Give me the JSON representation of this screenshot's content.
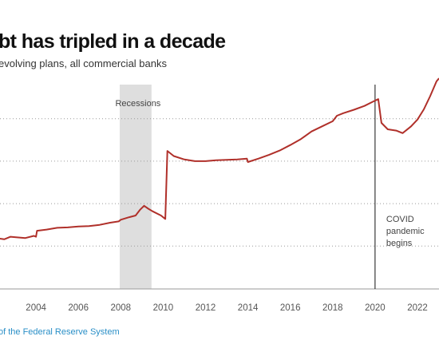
{
  "header": {
    "title": "bt has tripled in a decade",
    "subtitle": "evolving plans, all commercial banks"
  },
  "footer": {
    "source": "of the Federal Reserve System"
  },
  "chart_data": {
    "type": "line",
    "title": "bt has tripled in a decade",
    "subtitle": "evolving plans, all commercial banks",
    "xlabel": "",
    "ylabel": "",
    "xlim": [
      2002,
      2023
    ],
    "ylim": [
      0,
      5
    ],
    "grid": "horizontal-dotted",
    "line_color": "#b0302a",
    "x_ticks": [
      "2",
      "2004",
      "2006",
      "2008",
      "2010",
      "2012",
      "2014",
      "2016",
      "2018",
      "2020",
      "2022"
    ],
    "recession": {
      "label": "Recessions",
      "start": 2007.95,
      "end": 2009.45,
      "color": "#dedede"
    },
    "event": {
      "x": 2020.0,
      "label_lines": [
        "COVID",
        "pandemic",
        "begins"
      ]
    },
    "series": [
      {
        "values": [
          [
            2002.0,
            1.2
          ],
          [
            2002.5,
            1.16
          ],
          [
            2002.8,
            1.22
          ],
          [
            2003.0,
            1.21
          ],
          [
            2003.5,
            1.19
          ],
          [
            2003.9,
            1.24
          ],
          [
            2004.0,
            1.22
          ],
          [
            2004.05,
            1.36
          ],
          [
            2004.5,
            1.39
          ],
          [
            2005.0,
            1.43
          ],
          [
            2005.5,
            1.44
          ],
          [
            2006.0,
            1.46
          ],
          [
            2006.5,
            1.47
          ],
          [
            2007.0,
            1.5
          ],
          [
            2007.5,
            1.55
          ],
          [
            2007.9,
            1.58
          ],
          [
            2008.0,
            1.62
          ],
          [
            2008.4,
            1.68
          ],
          [
            2008.7,
            1.72
          ],
          [
            2008.9,
            1.85
          ],
          [
            2009.1,
            1.95
          ],
          [
            2009.3,
            1.88
          ],
          [
            2009.5,
            1.82
          ],
          [
            2009.9,
            1.72
          ],
          [
            2010.1,
            1.64
          ],
          [
            2010.2,
            3.24
          ],
          [
            2010.5,
            3.12
          ],
          [
            2011.0,
            3.04
          ],
          [
            2011.5,
            3.0
          ],
          [
            2012.0,
            3.0
          ],
          [
            2012.5,
            3.02
          ],
          [
            2013.0,
            3.03
          ],
          [
            2013.5,
            3.04
          ],
          [
            2013.95,
            3.06
          ],
          [
            2014.0,
            2.98
          ],
          [
            2014.5,
            3.06
          ],
          [
            2015.0,
            3.15
          ],
          [
            2015.5,
            3.25
          ],
          [
            2016.0,
            3.38
          ],
          [
            2016.5,
            3.52
          ],
          [
            2017.0,
            3.7
          ],
          [
            2017.5,
            3.82
          ],
          [
            2018.0,
            3.94
          ],
          [
            2018.2,
            4.07
          ],
          [
            2018.5,
            4.13
          ],
          [
            2019.0,
            4.21
          ],
          [
            2019.5,
            4.3
          ],
          [
            2019.9,
            4.4
          ],
          [
            2020.15,
            4.46
          ],
          [
            2020.3,
            3.9
          ],
          [
            2020.6,
            3.75
          ],
          [
            2021.0,
            3.72
          ],
          [
            2021.3,
            3.66
          ],
          [
            2021.7,
            3.82
          ],
          [
            2022.0,
            3.98
          ],
          [
            2022.3,
            4.22
          ],
          [
            2022.6,
            4.53
          ],
          [
            2022.9,
            4.88
          ],
          [
            2023.0,
            4.94
          ]
        ]
      }
    ]
  }
}
